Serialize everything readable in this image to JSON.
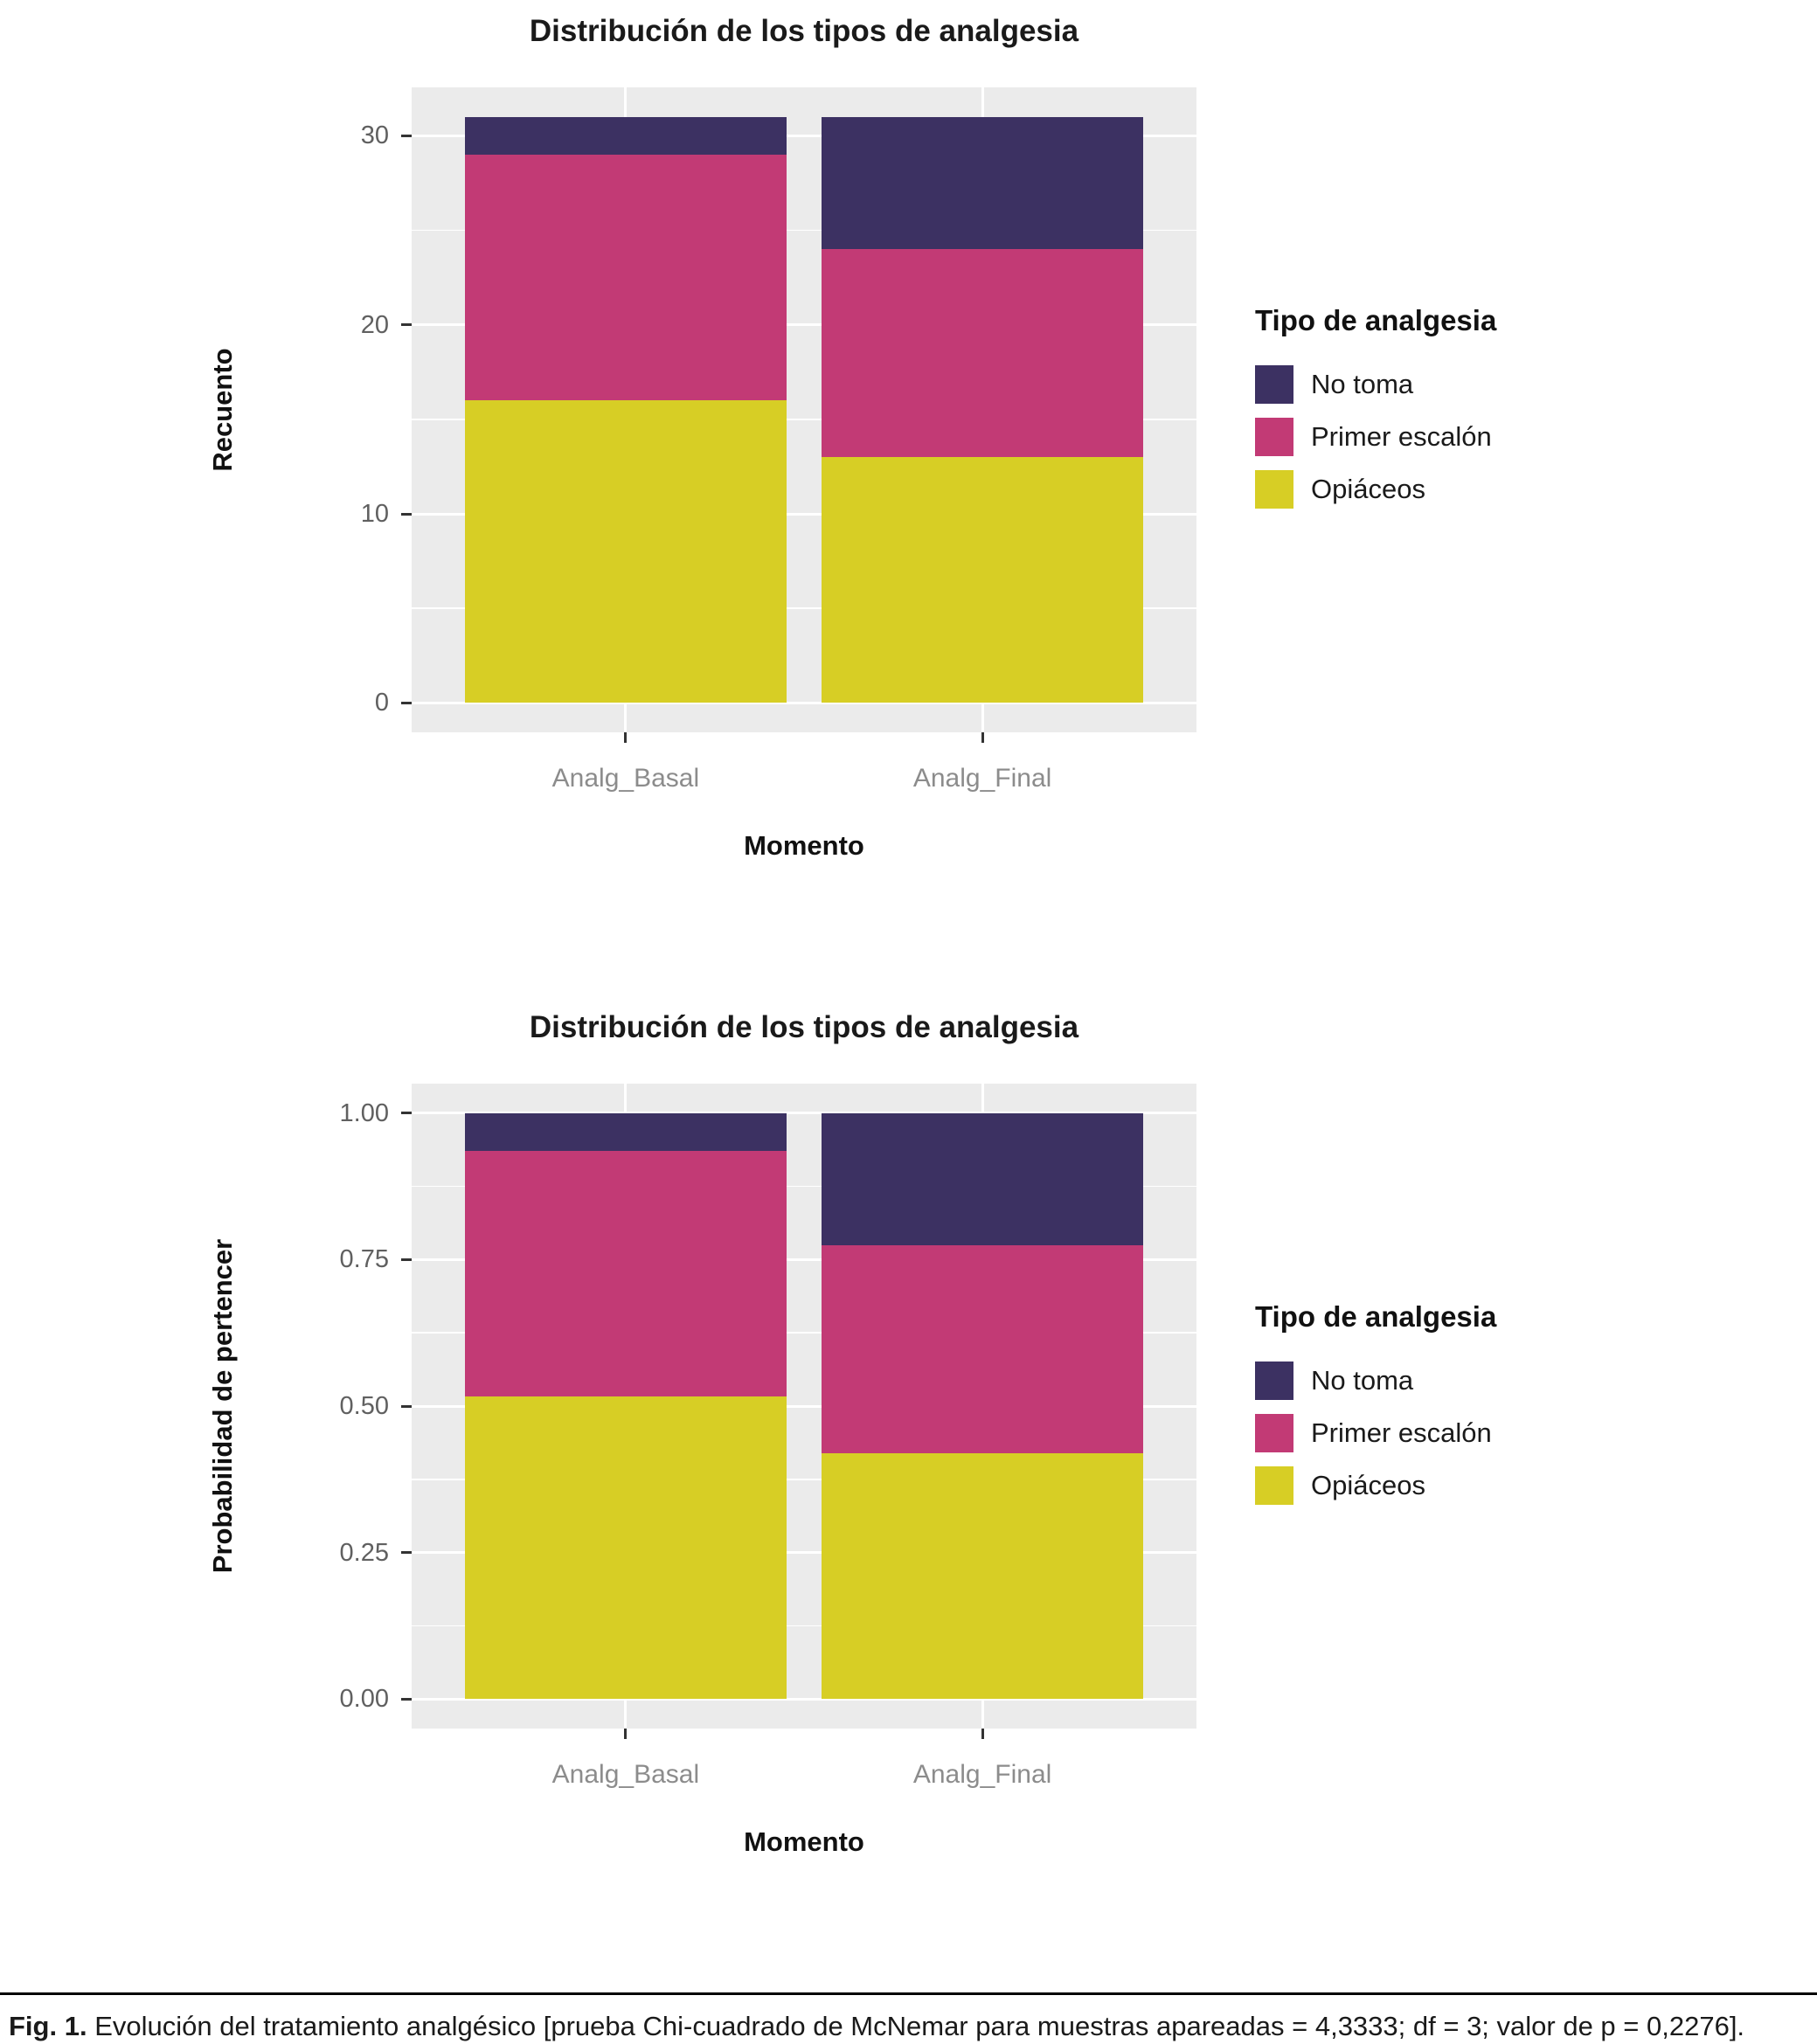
{
  "legend": {
    "title": "Tipo de analgesia",
    "items": [
      {
        "label": "No toma",
        "color": "#3C3162"
      },
      {
        "label": "Primer escalón",
        "color": "#C23A75"
      },
      {
        "label": "Opiáceos",
        "color": "#D7CE25"
      }
    ]
  },
  "chart_data": [
    {
      "type": "bar",
      "stacked": true,
      "title": "Distribución de los tipos de analgesia",
      "xlabel": "Momento",
      "ylabel": "Recuento",
      "categories": [
        "Analg_Basal",
        "Analg_Final"
      ],
      "series": [
        {
          "name": "Opiáceos",
          "color": "#D7CE25",
          "values": [
            16,
            13
          ]
        },
        {
          "name": "Primer escalón",
          "color": "#C23A75",
          "values": [
            13,
            11
          ]
        },
        {
          "name": "No toma",
          "color": "#3C3162",
          "values": [
            2,
            7
          ]
        }
      ],
      "totals": [
        31,
        31
      ],
      "yticks": [
        {
          "v": 0,
          "label": "0"
        },
        {
          "v": 10,
          "label": "10"
        },
        {
          "v": 20,
          "label": "20"
        },
        {
          "v": 30,
          "label": "30"
        }
      ],
      "ylim": [
        -1.55,
        32.55
      ],
      "grid": true,
      "legend_position": "right"
    },
    {
      "type": "bar",
      "stacked": true,
      "title": "Distribución de los tipos de analgesia",
      "xlabel": "Momento",
      "ylabel": "Probabilidad de pertencer",
      "categories": [
        "Analg_Basal",
        "Analg_Final"
      ],
      "series": [
        {
          "name": "Opiáceos",
          "color": "#D7CE25",
          "values": [
            0.5161,
            0.4194
          ]
        },
        {
          "name": "Primer escalón",
          "color": "#C23A75",
          "values": [
            0.4194,
            0.3548
          ]
        },
        {
          "name": "No toma",
          "color": "#3C3162",
          "values": [
            0.0645,
            0.2258
          ]
        }
      ],
      "yticks": [
        {
          "v": 0,
          "label": "0.00"
        },
        {
          "v": 0.25,
          "label": "0.25"
        },
        {
          "v": 0.5,
          "label": "0.50"
        },
        {
          "v": 0.75,
          "label": "0.75"
        },
        {
          "v": 1.0,
          "label": "1.00"
        }
      ],
      "ylim": [
        -0.05,
        1.05
      ],
      "grid": true,
      "legend_position": "right"
    }
  ],
  "caption": {
    "fig_label": "Fig. 1.",
    "text": "Evolución del tratamiento analgésico [prueba Chi-cuadrado de McNemar para muestras apareadas = 4,3333; df = 3; valor de p = 0,2276]."
  }
}
